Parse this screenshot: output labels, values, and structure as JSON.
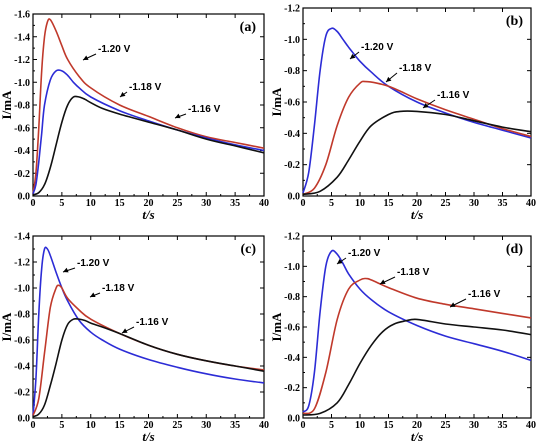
{
  "chart_data": [
    {
      "type": "line",
      "panel_label": "(a)",
      "xlabel": "t/s",
      "ylabel": "I/mA",
      "xlim": [
        0,
        40
      ],
      "ylim": [
        0,
        -1.6
      ],
      "xticks": [
        0,
        5,
        10,
        15,
        20,
        25,
        30,
        35,
        40
      ],
      "xtick_labels": [
        "0",
        "5",
        "10",
        "15",
        "20",
        "25",
        "30",
        "35",
        "40"
      ],
      "yticks": [
        0,
        -0.2,
        -0.4,
        -0.6,
        -0.8,
        -1.0,
        -1.2,
        -1.4,
        -1.6
      ],
      "ytick_labels": [
        "0.0",
        "-0.2",
        "-0.4",
        "-0.6",
        "-0.8",
        "-1.0",
        "-1.2",
        "-1.4",
        "-1.6"
      ],
      "grid": false,
      "series": [
        {
          "name": "-1.20 V",
          "color": "#c0392b",
          "x": [
            0,
            0.5,
            1,
            1.5,
            2,
            2.5,
            3,
            4,
            5,
            6,
            8,
            10,
            15,
            20,
            25,
            30,
            35,
            40
          ],
          "y": [
            -0.02,
            -0.2,
            -0.6,
            -1.1,
            -1.4,
            -1.53,
            -1.55,
            -1.45,
            -1.32,
            -1.2,
            -1.05,
            -0.95,
            -0.8,
            -0.7,
            -0.6,
            -0.52,
            -0.47,
            -0.42
          ]
        },
        {
          "name": "-1.18 V",
          "color": "#2c2cd6",
          "x": [
            0,
            0.5,
            1,
            1.5,
            2,
            3,
            4,
            5,
            6,
            7,
            8,
            10,
            15,
            20,
            25,
            30,
            35,
            40
          ],
          "y": [
            -0.02,
            -0.1,
            -0.3,
            -0.55,
            -0.8,
            -1.02,
            -1.1,
            -1.1,
            -1.06,
            -1.0,
            -0.95,
            -0.87,
            -0.75,
            -0.66,
            -0.58,
            -0.51,
            -0.45,
            -0.4
          ]
        },
        {
          "name": "-1.16 V",
          "color": "#111111",
          "x": [
            0,
            1,
            2,
            3,
            4,
            5,
            6,
            7,
            8,
            9,
            10,
            12,
            15,
            20,
            25,
            30,
            35,
            40
          ],
          "y": [
            -0.01,
            -0.03,
            -0.1,
            -0.25,
            -0.45,
            -0.65,
            -0.8,
            -0.87,
            -0.87,
            -0.85,
            -0.82,
            -0.77,
            -0.72,
            -0.65,
            -0.58,
            -0.5,
            -0.44,
            -0.38
          ]
        }
      ],
      "annotations": [
        {
          "text": "-1.20 V",
          "series": "-1.20 V"
        },
        {
          "text": "-1.18 V",
          "series": "-1.18 V"
        },
        {
          "text": "-1.16 V",
          "series": "-1.16 V"
        }
      ]
    },
    {
      "type": "line",
      "panel_label": "(b)",
      "xlabel": "t/s",
      "ylabel": "I/mA",
      "xlim": [
        0,
        40
      ],
      "ylim": [
        0,
        -1.2
      ],
      "xticks": [
        0,
        5,
        10,
        15,
        20,
        25,
        30,
        35,
        40
      ],
      "xtick_labels": [
        "0",
        "5",
        "10",
        "15",
        "20",
        "25",
        "30",
        "35",
        "40"
      ],
      "yticks": [
        0,
        -0.2,
        -0.4,
        -0.6,
        -0.8,
        -1.0,
        -1.2
      ],
      "ytick_labels": [
        "0.0",
        "-0.2",
        "-0.4",
        "-0.6",
        "-0.8",
        "-1.0",
        "-1.2"
      ],
      "grid": false,
      "series": [
        {
          "name": "-1.20 V",
          "color": "#2c2cd6",
          "x": [
            0,
            1,
            2,
            3,
            4,
            5,
            6,
            7,
            8,
            10,
            12,
            15,
            20,
            25,
            30,
            35,
            40
          ],
          "y": [
            -0.02,
            -0.15,
            -0.45,
            -0.8,
            -1.02,
            -1.07,
            -1.05,
            -1.0,
            -0.95,
            -0.86,
            -0.79,
            -0.7,
            -0.6,
            -0.53,
            -0.47,
            -0.42,
            -0.37
          ]
        },
        {
          "name": "-1.18 V",
          "color": "#c0392b",
          "x": [
            0,
            2,
            4,
            6,
            8,
            10,
            11,
            13,
            15,
            17,
            20,
            25,
            30,
            35,
            40
          ],
          "y": [
            -0.01,
            -0.05,
            -0.2,
            -0.45,
            -0.63,
            -0.72,
            -0.73,
            -0.72,
            -0.7,
            -0.67,
            -0.62,
            -0.55,
            -0.49,
            -0.43,
            -0.38
          ]
        },
        {
          "name": "-1.16 V",
          "color": "#111111",
          "x": [
            0,
            3,
            6,
            8,
            10,
            12,
            15,
            17,
            20,
            25,
            30,
            35,
            40
          ],
          "y": [
            -0.01,
            -0.03,
            -0.12,
            -0.23,
            -0.35,
            -0.45,
            -0.52,
            -0.54,
            -0.54,
            -0.52,
            -0.48,
            -0.44,
            -0.41
          ]
        }
      ],
      "annotations": [
        {
          "text": "-1.20 V",
          "series": "-1.20 V"
        },
        {
          "text": "-1.18 V",
          "series": "-1.18 V"
        },
        {
          "text": "-1.16 V",
          "series": "-1.16 V"
        }
      ]
    },
    {
      "type": "line",
      "panel_label": "(c)",
      "xlabel": "t/s",
      "ylabel": "I/mA",
      "xlim": [
        0,
        40
      ],
      "ylim": [
        0,
        -1.4
      ],
      "xticks": [
        0,
        5,
        10,
        15,
        20,
        25,
        30,
        35,
        40
      ],
      "xtick_labels": [
        "0",
        "5",
        "10",
        "15",
        "20",
        "25",
        "30",
        "35",
        "40"
      ],
      "yticks": [
        0,
        -0.2,
        -0.4,
        -0.6,
        -0.8,
        -1.0,
        -1.2,
        -1.4
      ],
      "ytick_labels": [
        "0.0",
        "-0.2",
        "-0.4",
        "-0.6",
        "-0.8",
        "-1.0",
        "-1.2",
        "-1.4"
      ],
      "grid": false,
      "series": [
        {
          "name": "-1.20 V",
          "color": "#2c2cd6",
          "x": [
            0,
            0.5,
            1,
            1.5,
            2,
            2.5,
            3,
            4,
            5,
            6,
            8,
            10,
            12,
            15,
            20,
            25,
            30,
            35,
            40
          ],
          "y": [
            -0.02,
            -0.3,
            -0.8,
            -1.15,
            -1.3,
            -1.3,
            -1.25,
            -1.12,
            -1.0,
            -0.9,
            -0.75,
            -0.66,
            -0.6,
            -0.53,
            -0.45,
            -0.39,
            -0.34,
            -0.3,
            -0.27
          ]
        },
        {
          "name": "-1.18 V",
          "color": "#c0392b",
          "x": [
            0,
            1,
            2,
            3,
            4,
            4.5,
            5,
            6,
            8,
            10,
            15,
            20,
            25,
            30,
            35,
            40
          ],
          "y": [
            -0.02,
            -0.15,
            -0.5,
            -0.85,
            -1.0,
            -1.02,
            -1.0,
            -0.92,
            -0.83,
            -0.76,
            -0.65,
            -0.56,
            -0.49,
            -0.44,
            -0.4,
            -0.37
          ]
        },
        {
          "name": "-1.16 V",
          "color": "#111111",
          "x": [
            0,
            1,
            2,
            3,
            4,
            5,
            6,
            7,
            8,
            9,
            10,
            12,
            15,
            20,
            25,
            30,
            35,
            40
          ],
          "y": [
            -0.01,
            -0.03,
            -0.1,
            -0.25,
            -0.42,
            -0.6,
            -0.72,
            -0.76,
            -0.76,
            -0.75,
            -0.73,
            -0.7,
            -0.65,
            -0.56,
            -0.49,
            -0.44,
            -0.4,
            -0.36
          ]
        }
      ],
      "annotations": [
        {
          "text": "-1.20 V",
          "series": "-1.20 V"
        },
        {
          "text": "-1.18 V",
          "series": "-1.18 V"
        },
        {
          "text": "-1.16 V",
          "series": "-1.16 V"
        }
      ]
    },
    {
      "type": "line",
      "panel_label": "(d)",
      "xlabel": "t/s",
      "ylabel": "I/mA",
      "xlim": [
        0,
        40
      ],
      "ylim": [
        0,
        -1.2
      ],
      "xticks": [
        0,
        5,
        10,
        15,
        20,
        25,
        30,
        35,
        40
      ],
      "xtick_labels": [
        "0",
        "5",
        "10",
        "15",
        "20",
        "25",
        "30",
        "35",
        "40"
      ],
      "yticks": [
        0,
        -0.2,
        -0.4,
        -0.6,
        -0.8,
        -1.0,
        -1.2
      ],
      "ytick_labels": [
        "0.0",
        "-0.2",
        "-0.4",
        "-0.6",
        "-0.8",
        "-1.0",
        "-1.2"
      ],
      "grid": false,
      "series": [
        {
          "name": "-1.20 V",
          "color": "#2c2cd6",
          "x": [
            0,
            1,
            2,
            3,
            4,
            5,
            6,
            7,
            8,
            10,
            12,
            15,
            20,
            25,
            30,
            35,
            40
          ],
          "y": [
            -0.04,
            -0.08,
            -0.3,
            -0.7,
            -1.0,
            -1.1,
            -1.08,
            -1.02,
            -0.95,
            -0.85,
            -0.78,
            -0.7,
            -0.61,
            -0.54,
            -0.49,
            -0.44,
            -0.38
          ]
        },
        {
          "name": "-1.18 V",
          "color": "#c0392b",
          "x": [
            0,
            2,
            4,
            6,
            8,
            10,
            11,
            12,
            15,
            20,
            25,
            30,
            35,
            40
          ],
          "y": [
            -0.03,
            -0.06,
            -0.3,
            -0.65,
            -0.85,
            -0.91,
            -0.92,
            -0.91,
            -0.86,
            -0.79,
            -0.75,
            -0.72,
            -0.69,
            -0.66
          ]
        },
        {
          "name": "-1.16 V",
          "color": "#111111",
          "x": [
            0,
            3,
            6,
            8,
            10,
            12,
            14,
            16,
            18,
            20,
            25,
            30,
            35,
            40
          ],
          "y": [
            -0.02,
            -0.03,
            -0.1,
            -0.22,
            -0.36,
            -0.48,
            -0.57,
            -0.62,
            -0.64,
            -0.65,
            -0.62,
            -0.6,
            -0.58,
            -0.55
          ]
        }
      ],
      "annotations": [
        {
          "text": "-1.20 V",
          "series": "-1.20 V"
        },
        {
          "text": "-1.18 V",
          "series": "-1.18 V"
        },
        {
          "text": "-1.16 V",
          "series": "-1.16 V"
        }
      ]
    }
  ]
}
